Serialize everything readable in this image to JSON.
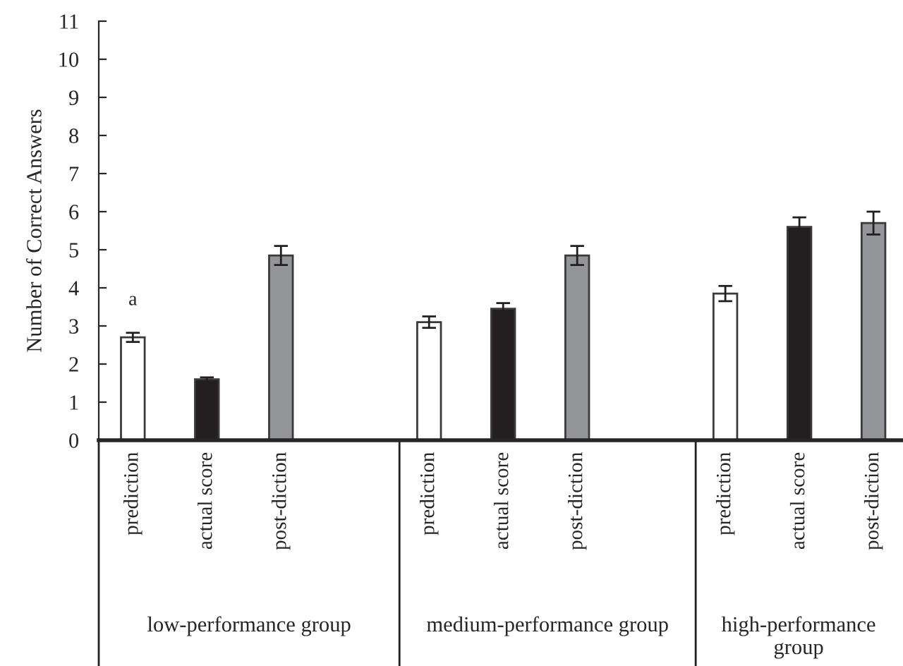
{
  "chart_data": {
    "type": "bar",
    "ylabel": "Number of Correct Answers",
    "categories": [
      "prediction",
      "actual score",
      "post-diction",
      null,
      "prediction",
      "actual score",
      "post-diction",
      null,
      "prediction",
      "actual score",
      "post-diction"
    ],
    "values": [
      2.7,
      1.6,
      4.85,
      null,
      3.1,
      3.45,
      4.85,
      null,
      3.85,
      5.6,
      5.7
    ],
    "errors": [
      0.12,
      0.05,
      0.25,
      null,
      0.15,
      0.15,
      0.25,
      null,
      0.2,
      0.25,
      0.3
    ],
    "colors": [
      "#ffffff",
      "#231f20",
      "#939598",
      "#ffffff",
      "#ffffff",
      "#231f20",
      "#939598",
      "#ffffff",
      "#ffffff",
      "#231f20",
      "#939598"
    ],
    "ylim": [
      0,
      11
    ],
    "yticks": [
      0,
      1,
      2,
      3,
      4,
      5,
      6,
      7,
      8,
      9,
      10,
      11
    ],
    "annotations": [
      "low-performance group",
      "medium-performance group",
      "high-performance group",
      "a"
    ],
    "grid": false,
    "legend": false
  }
}
